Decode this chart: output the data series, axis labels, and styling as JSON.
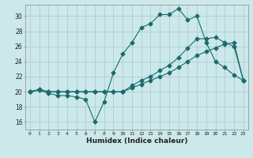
{
  "xlabel": "Humidex (Indice chaleur)",
  "background_color": "#cce8ea",
  "grid_color": "#aacfd2",
  "line_color": "#1a6b6b",
  "xlim": [
    -0.5,
    23.5
  ],
  "ylim": [
    15.0,
    31.5
  ],
  "xticks": [
    0,
    1,
    2,
    3,
    4,
    5,
    6,
    7,
    8,
    9,
    10,
    11,
    12,
    13,
    14,
    15,
    16,
    17,
    18,
    19,
    20,
    21,
    22,
    23
  ],
  "yticks": [
    16,
    18,
    20,
    22,
    24,
    26,
    28,
    30
  ],
  "curve1_x": [
    0,
    1,
    2,
    3,
    4,
    5,
    6,
    7,
    8,
    9,
    10,
    11,
    12,
    13,
    14,
    15,
    16,
    17,
    18,
    19,
    20,
    21,
    22,
    23
  ],
  "curve1_y": [
    20.0,
    20.2,
    19.8,
    19.5,
    19.5,
    19.3,
    19.0,
    16.0,
    18.7,
    22.5,
    25.0,
    26.5,
    28.5,
    29.0,
    30.2,
    30.2,
    31.0,
    29.5,
    30.0,
    26.5,
    24.0,
    23.2,
    22.2,
    21.5
  ],
  "curve2_x": [
    0,
    1,
    2,
    3,
    4,
    5,
    6,
    7,
    8,
    9,
    10,
    11,
    12,
    13,
    14,
    15,
    16,
    17,
    18,
    19,
    20,
    21,
    22,
    23
  ],
  "curve2_y": [
    20.0,
    20.3,
    20.0,
    20.0,
    20.0,
    20.0,
    20.0,
    20.0,
    20.0,
    20.0,
    20.0,
    20.5,
    21.0,
    21.5,
    22.0,
    22.5,
    23.2,
    24.0,
    24.8,
    25.3,
    25.8,
    26.3,
    26.5,
    21.5
  ],
  "curve3_x": [
    0,
    1,
    2,
    3,
    4,
    5,
    6,
    7,
    8,
    9,
    10,
    11,
    12,
    13,
    14,
    15,
    16,
    17,
    18,
    19,
    20,
    21,
    22,
    23
  ],
  "curve3_y": [
    20.0,
    20.3,
    20.0,
    20.0,
    20.0,
    20.0,
    20.0,
    20.0,
    20.0,
    20.0,
    20.0,
    20.8,
    21.5,
    22.0,
    22.8,
    23.5,
    24.5,
    25.8,
    27.0,
    27.0,
    27.2,
    26.5,
    26.0,
    21.5
  ],
  "marker_x1": [
    0,
    1,
    2,
    3,
    4,
    5,
    6,
    7,
    8,
    9,
    10,
    11,
    12,
    13,
    14,
    15,
    16,
    17,
    18,
    19,
    20,
    21,
    22,
    23
  ],
  "marker_x2": [
    0,
    1,
    2,
    10,
    11,
    12,
    13,
    14,
    15,
    16,
    17,
    18,
    19,
    20,
    21,
    22,
    23
  ],
  "marker_x3": [
    0,
    1,
    2,
    10,
    11,
    12,
    13,
    14,
    15,
    16,
    17,
    18,
    19,
    20,
    21,
    22,
    23
  ]
}
